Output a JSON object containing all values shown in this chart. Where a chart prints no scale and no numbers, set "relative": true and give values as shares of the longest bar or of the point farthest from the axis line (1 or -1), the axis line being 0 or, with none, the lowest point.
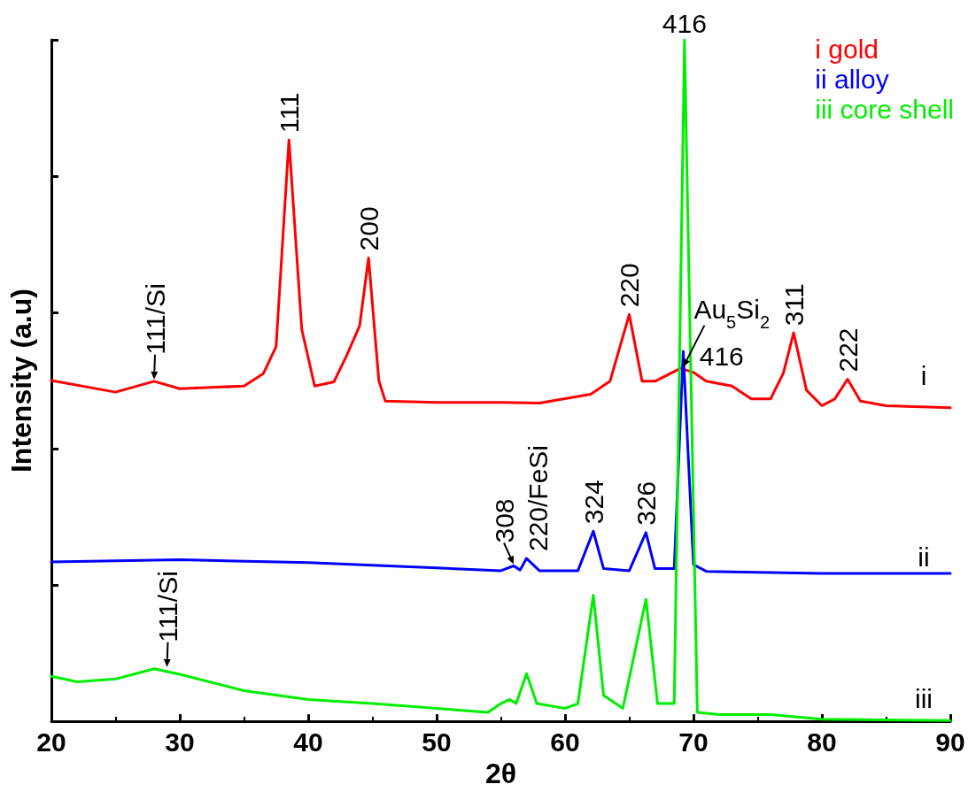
{
  "chart_data": {
    "type": "line",
    "relative": true,
    "xlabel": "2θ",
    "ylabel": "Intensity (a.u)",
    "xlim": [
      20,
      90
    ],
    "xticks": [
      20,
      30,
      40,
      50,
      60,
      70,
      80,
      90
    ],
    "tick_labels": "x",
    "grid": false,
    "legend": "top right",
    "marker": "none",
    "series": [
      {
        "name": "i gold",
        "color": "#ff0000",
        "x": [
          20,
          25,
          28,
          30,
          35,
          36.5,
          37.5,
          38.5,
          39.5,
          40.5,
          42,
          43,
          44,
          44.7,
          45.5,
          46,
          50,
          55,
          58,
          62,
          63.5,
          65,
          66,
          67,
          69,
          70,
          71,
          73,
          74.5,
          76,
          77,
          77.8,
          78.8,
          80,
          81,
          82,
          83,
          85,
          90
        ],
        "values": [
          0.5,
          0.483,
          0.499,
          0.488,
          0.492,
          0.51,
          0.55,
          0.853,
          0.575,
          0.492,
          0.498,
          0.537,
          0.58,
          0.68,
          0.5,
          0.47,
          0.468,
          0.468,
          0.467,
          0.48,
          0.499,
          0.597,
          0.499,
          0.499,
          0.518,
          0.512,
          0.499,
          0.492,
          0.473,
          0.473,
          0.511,
          0.57,
          0.486,
          0.463,
          0.473,
          0.502,
          0.47,
          0.463,
          0.46
        ]
      },
      {
        "name": "ii alloy",
        "color": "#0000ff",
        "x": [
          20,
          30,
          40,
          50,
          55,
          56,
          56.5,
          57,
          58,
          61,
          62.2,
          63,
          65,
          66.3,
          67,
          68.5,
          69.2,
          70,
          71,
          80,
          90
        ],
        "values": [
          0.234,
          0.237,
          0.233,
          0.225,
          0.221,
          0.228,
          0.222,
          0.239,
          0.221,
          0.221,
          0.279,
          0.224,
          0.221,
          0.277,
          0.224,
          0.224,
          0.543,
          0.23,
          0.22,
          0.217,
          0.217
        ]
      },
      {
        "name": "iii core shell",
        "color": "#00ee00",
        "x": [
          20,
          22,
          25,
          28,
          30,
          35,
          40,
          45,
          50,
          54,
          55,
          55.7,
          56.2,
          57,
          57.8,
          60,
          61,
          62.2,
          63,
          64.5,
          66.3,
          67.2,
          68.5,
          69.3,
          70.3,
          72,
          76,
          80,
          90
        ],
        "values": [
          0.066,
          0.058,
          0.062,
          0.077,
          0.069,
          0.045,
          0.032,
          0.026,
          0.019,
          0.013,
          0.026,
          0.032,
          0.026,
          0.07,
          0.026,
          0.019,
          0.026,
          0.185,
          0.038,
          0.019,
          0.179,
          0.026,
          0.026,
          1.0,
          0.013,
          0.01,
          0.01,
          0.003,
          0.001
        ]
      }
    ],
    "annotations": [
      {
        "text": "111/Si",
        "x": 28,
        "y": 0.499
      },
      {
        "text": "111",
        "x": 38.5,
        "y": 0.853
      },
      {
        "text": "200",
        "x": 44.7,
        "y": 0.68
      },
      {
        "text": "220",
        "x": 65,
        "y": 0.597
      },
      {
        "text": "Au$_{5}$Si$_{2}$",
        "x": 69.2,
        "y": 0.52
      },
      {
        "text": "416",
        "x": 69.5,
        "y": 0.52
      },
      {
        "text": "311",
        "x": 77.8,
        "y": 0.57
      },
      {
        "text": "222",
        "x": 82,
        "y": 0.502
      },
      "i",
      {
        "text": "308",
        "x": 56,
        "y": 0.228
      },
      {
        "text": "220/FeSi",
        "x": 57,
        "y": 0.239
      },
      {
        "text": "324",
        "x": 62.2,
        "y": 0.279
      },
      {
        "text": "326",
        "x": 66.3,
        "y": 0.277
      },
      {
        "text": "416",
        "x": 69.3,
        "y": 1.0
      },
      "ii",
      {
        "text": "111/Si",
        "x": 29,
        "y": 0.077
      },
      "iii"
    ]
  }
}
